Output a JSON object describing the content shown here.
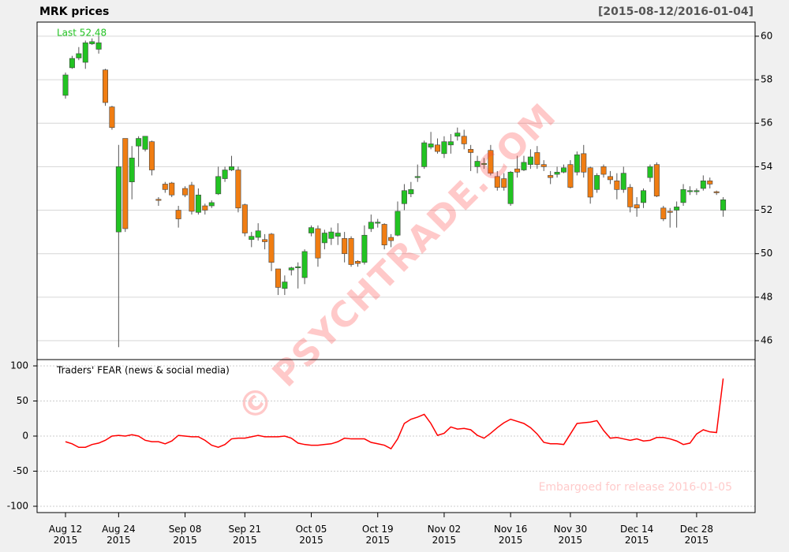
{
  "chart_data": [
    {
      "type": "candlestick",
      "title": "MRK prices",
      "subtitle": "[2015-08-12/2016-01-04]",
      "annotation": "Last 52.48",
      "watermark": "© PSYCHTRADE.COM",
      "up_color": "#22c322",
      "down_color": "#f07d12",
      "grid": true,
      "ylim": [
        45.13,
        60.65
      ],
      "yticks": [
        46,
        48,
        50,
        52,
        54,
        56,
        58,
        60
      ],
      "open": [
        57.28,
        58.55,
        59.0,
        58.8,
        59.65,
        59.4,
        58.45,
        56.75,
        51.0,
        55.3,
        53.3,
        54.95,
        54.8,
        55.15,
        52.5,
        53.2,
        53.25,
        52.0,
        53.0,
        53.15,
        51.9,
        52.2,
        52.2,
        52.75,
        53.45,
        53.85,
        53.85,
        52.25,
        50.65,
        50.75,
        50.65,
        50.9,
        49.3,
        48.4,
        49.25,
        49.35,
        48.9,
        50.95,
        51.15,
        50.5,
        50.7,
        50.8,
        50.7,
        50.7,
        49.65,
        49.6,
        51.15,
        51.4,
        51.35,
        50.75,
        50.85,
        52.3,
        52.75,
        53.5,
        54.0,
        54.9,
        55.0,
        54.6,
        55.0,
        55.4,
        55.4,
        54.8,
        54.0,
        54.1,
        54.75,
        53.55,
        53.45,
        52.3,
        53.9,
        53.85,
        54.1,
        54.65,
        54.1,
        53.6,
        53.65,
        53.75,
        54.1,
        53.75,
        54.6,
        53.95,
        52.95,
        54.0,
        53.55,
        53.35,
        52.95,
        53.05,
        52.25,
        52.35,
        53.5,
        54.1,
        52.1,
        51.95,
        52.0,
        52.35,
        52.85,
        52.85,
        53.0,
        53.35,
        52.85,
        52.0
      ],
      "high": [
        58.33,
        59.1,
        59.5,
        59.8,
        59.9,
        60.0,
        58.5,
        56.8,
        55.0,
        55.3,
        54.95,
        55.4,
        55.4,
        55.2,
        52.6,
        53.3,
        53.3,
        52.2,
        53.1,
        53.3,
        53.0,
        52.3,
        52.45,
        54.0,
        54.0,
        54.5,
        54.0,
        52.3,
        51.0,
        51.4,
        50.9,
        50.95,
        49.3,
        49.0,
        49.4,
        49.6,
        50.2,
        51.3,
        51.3,
        51.1,
        51.2,
        51.4,
        51.0,
        50.8,
        49.7,
        51.3,
        51.8,
        51.6,
        51.4,
        50.9,
        52.4,
        53.2,
        53.3,
        54.1,
        55.2,
        55.6,
        55.3,
        55.4,
        55.5,
        55.8,
        55.7,
        55.0,
        54.5,
        54.4,
        55.0,
        53.8,
        53.7,
        53.8,
        54.5,
        54.5,
        54.8,
        54.95,
        54.3,
        53.8,
        54.0,
        54.1,
        54.3,
        54.7,
        55.0,
        54.0,
        53.7,
        54.1,
        53.8,
        53.7,
        54.0,
        53.2,
        52.6,
        53.0,
        54.1,
        54.2,
        52.2,
        52.1,
        52.4,
        53.2,
        53.1,
        53.0,
        53.6,
        53.5,
        52.9,
        52.6
      ],
      "low": [
        57.13,
        58.5,
        58.9,
        58.5,
        59.6,
        59.2,
        56.8,
        55.7,
        45.7,
        51.0,
        52.5,
        54.0,
        54.7,
        53.6,
        52.2,
        52.8,
        52.6,
        51.2,
        52.6,
        51.8,
        51.8,
        51.8,
        52.1,
        52.7,
        53.3,
        53.8,
        51.9,
        50.8,
        50.3,
        50.6,
        50.2,
        49.2,
        48.1,
        48.1,
        49.0,
        48.4,
        48.6,
        50.8,
        49.4,
        50.2,
        50.4,
        50.4,
        49.6,
        49.4,
        49.4,
        49.5,
        51.0,
        51.2,
        50.2,
        50.3,
        50.8,
        52.0,
        52.6,
        53.3,
        53.9,
        54.8,
        54.6,
        54.4,
        54.6,
        55.2,
        54.8,
        53.8,
        53.7,
        53.9,
        53.6,
        52.9,
        52.9,
        52.2,
        53.5,
        53.8,
        53.9,
        53.9,
        53.8,
        53.2,
        53.5,
        53.7,
        53.0,
        53.6,
        53.5,
        52.3,
        52.8,
        53.5,
        53.2,
        52.5,
        52.8,
        51.9,
        51.7,
        52.1,
        53.3,
        52.6,
        51.5,
        51.2,
        51.2,
        52.2,
        52.7,
        52.7,
        52.9,
        53.0,
        52.7,
        51.7
      ],
      "close": [
        58.22,
        58.98,
        59.2,
        59.7,
        59.75,
        59.7,
        56.95,
        55.8,
        54.0,
        51.15,
        54.4,
        55.3,
        55.4,
        53.85,
        52.45,
        52.95,
        52.7,
        51.6,
        52.7,
        51.95,
        52.7,
        52.0,
        52.35,
        53.55,
        53.85,
        54.0,
        52.1,
        50.95,
        50.8,
        51.05,
        50.55,
        49.6,
        48.45,
        48.7,
        49.35,
        49.4,
        50.1,
        51.2,
        49.8,
        50.95,
        51.0,
        50.95,
        50.0,
        49.5,
        49.55,
        50.85,
        51.45,
        51.45,
        50.4,
        50.6,
        51.95,
        52.9,
        52.95,
        53.55,
        55.1,
        55.05,
        54.7,
        55.15,
        55.15,
        55.55,
        55.05,
        54.65,
        54.25,
        54.15,
        53.7,
        53.05,
        53.05,
        53.75,
        53.75,
        54.2,
        54.45,
        54.1,
        54.0,
        53.5,
        53.75,
        53.95,
        53.05,
        54.55,
        53.75,
        52.6,
        53.6,
        53.65,
        53.4,
        52.95,
        53.7,
        52.15,
        52.1,
        52.9,
        54.0,
        52.65,
        51.6,
        51.9,
        52.15,
        52.95,
        52.9,
        52.9,
        53.35,
        53.2,
        52.8,
        52.48
      ]
    },
    {
      "type": "line",
      "title": "Traders' FEAR (news & social media)",
      "annotation": "Embargoed for release 2016-01-05",
      "color": "#ff0000",
      "grid": true,
      "ylim": [
        -109,
        109
      ],
      "yticks": [
        -100,
        -50,
        0,
        50,
        100
      ],
      "categories": [
        "Aug 12\n2015",
        null,
        null,
        null,
        null,
        null,
        null,
        null,
        "Aug 24\n2015",
        null,
        null,
        null,
        null,
        null,
        null,
        null,
        null,
        null,
        "Sep 08\n2015",
        null,
        null,
        null,
        null,
        null,
        null,
        null,
        null,
        "Sep 21\n2015",
        null,
        null,
        null,
        null,
        null,
        null,
        null,
        null,
        null,
        "Oct 05\n2015",
        null,
        null,
        null,
        null,
        null,
        null,
        null,
        null,
        null,
        "Oct 19\n2015",
        null,
        null,
        null,
        null,
        null,
        null,
        null,
        null,
        null,
        "Nov 02\n2015",
        null,
        null,
        null,
        null,
        null,
        null,
        null,
        null,
        null,
        "Nov 16\n2015",
        null,
        null,
        null,
        null,
        null,
        null,
        null,
        null,
        "Nov 30\n2015",
        null,
        null,
        null,
        null,
        null,
        null,
        null,
        null,
        null,
        "Dec 14\n2015",
        null,
        null,
        null,
        null,
        null,
        null,
        null,
        null,
        "Dec 28\n2015",
        null,
        null,
        null,
        null
      ],
      "values": [
        -8,
        -11,
        -16,
        -16,
        -12,
        -10,
        -6,
        0,
        1,
        0,
        2,
        0,
        -6,
        -8,
        -8,
        -11,
        -7,
        1,
        0,
        -1,
        -1,
        -6,
        -13,
        -16,
        -12,
        -4,
        -3,
        -3,
        -1,
        1,
        -1,
        -1,
        -1,
        0,
        -3,
        -10,
        -12,
        -13,
        -13,
        -12,
        -11,
        -8,
        -3,
        -4,
        -4,
        -4,
        -9,
        -11,
        -13,
        -18,
        -4,
        18,
        24,
        27,
        31,
        18,
        1,
        4,
        13,
        10,
        11,
        9,
        1,
        -3,
        4,
        12,
        19,
        24,
        21,
        18,
        12,
        3,
        -9,
        -11,
        -11,
        -12,
        3,
        18,
        19,
        20,
        22,
        8,
        -3,
        -2,
        -4,
        -6,
        -4,
        -7,
        -6,
        -2,
        -2,
        -4,
        -7,
        -12,
        -10,
        3,
        9,
        6,
        5,
        82
      ]
    }
  ]
}
